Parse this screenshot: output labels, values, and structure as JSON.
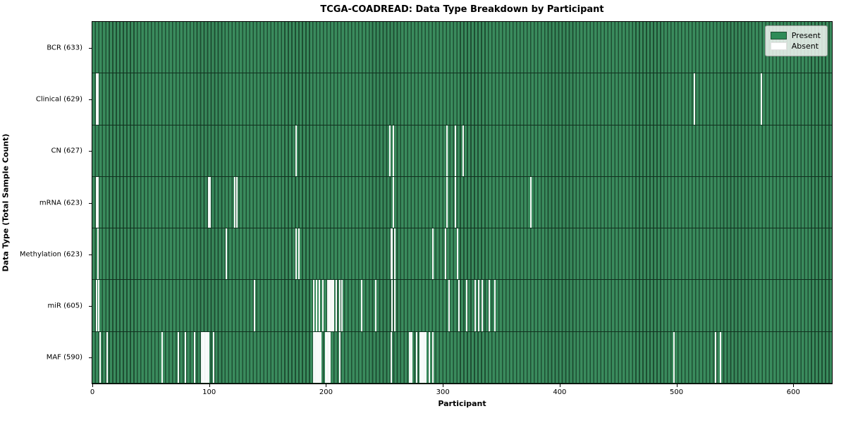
{
  "title": "TCGA-COADREAD: Data Type Breakdown by Participant",
  "xlabel": "Participant",
  "ylabel": "Data Type (Total Sample Count)",
  "legend": {
    "items": [
      {
        "label": "Present",
        "color": "#2e8b57"
      },
      {
        "label": "Absent",
        "color": "#ffffff"
      }
    ]
  },
  "colors": {
    "present_fill": "#3a8b5d",
    "present_edge": "#1e4f33",
    "absent": "#ffffff",
    "row_divider": "#10301e",
    "axis": "#000000",
    "legend_bg": "#f2f5f2",
    "legend_border": "#9a9a9a"
  },
  "chart_data": {
    "type": "heatmap",
    "title": "TCGA-COADREAD: Data Type Breakdown by Participant",
    "xlabel": "Participant",
    "ylabel": "Data Type (Total Sample Count)",
    "n_participants": 633,
    "x_ticks": [
      0,
      100,
      200,
      300,
      400,
      500,
      600
    ],
    "legend_entries": [
      "Present",
      "Absent"
    ],
    "cell_states": {
      "present": 1,
      "absent": 0
    },
    "rows": [
      {
        "label": "BCR (633)",
        "data_type": "BCR",
        "total_sample_count": 633,
        "absent_participants": []
      },
      {
        "label": "Clinical (629)",
        "data_type": "Clinical",
        "total_sample_count": 629,
        "absent_participants": [
          3,
          4,
          515,
          572
        ]
      },
      {
        "label": "CN (627)",
        "data_type": "CN",
        "total_sample_count": 627,
        "absent_participants": [
          174,
          254,
          257,
          303,
          310,
          317
        ]
      },
      {
        "label": "mRNA (623)",
        "data_type": "mRNA",
        "total_sample_count": 623,
        "absent_participants": [
          3,
          4,
          99,
          100,
          121,
          123,
          257,
          303,
          310,
          375
        ]
      },
      {
        "label": "Methylation (623)",
        "data_type": "Methylation",
        "total_sample_count": 623,
        "absent_participants": [
          4,
          114,
          174,
          176,
          255,
          256,
          258,
          291,
          302,
          312
        ]
      },
      {
        "label": "miR (605)",
        "data_type": "miR",
        "total_sample_count": 605,
        "absent_participants": [
          3,
          5,
          138,
          189,
          191,
          194,
          197,
          201,
          202,
          203,
          204,
          205,
          206,
          208,
          211,
          213,
          230,
          242,
          256,
          258,
          305,
          313,
          320,
          327,
          330,
          333,
          339,
          344
        ]
      },
      {
        "label": "MAF (590)",
        "data_type": "MAF",
        "total_sample_count": 590,
        "absent_participants": [
          6,
          12,
          59,
          73,
          79,
          87,
          93,
          94,
          95,
          96,
          97,
          98,
          99,
          103,
          189,
          190,
          191,
          192,
          193,
          194,
          195,
          199,
          200,
          201,
          202,
          203,
          211,
          255,
          271,
          272,
          273,
          277,
          280,
          281,
          282,
          283,
          284,
          285,
          288,
          291,
          497,
          533,
          537
        ]
      }
    ]
  }
}
